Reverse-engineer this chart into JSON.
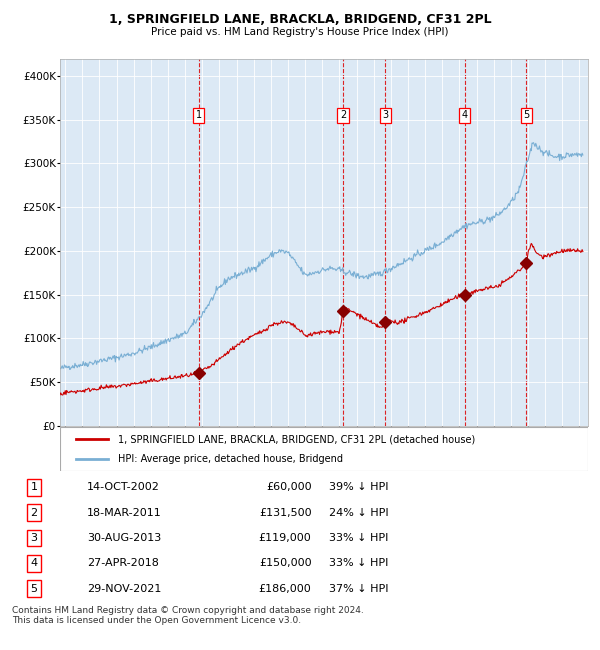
{
  "title1": "1, SPRINGFIELD LANE, BRACKLA, BRIDGEND, CF31 2PL",
  "title2": "Price paid vs. HM Land Registry's House Price Index (HPI)",
  "bg_color": "#dce9f5",
  "red_line_color": "#cc0000",
  "blue_line_color": "#7aafd4",
  "grid_color": "#ffffff",
  "sale_marker_color": "#880000",
  "vline_color": "#dd0000",
  "transactions": [
    {
      "num": 1,
      "date_decimal": 2002.79,
      "price": 60000,
      "label": "14-OCT-2002",
      "pct": "39%"
    },
    {
      "num": 2,
      "date_decimal": 2011.21,
      "price": 131500,
      "label": "18-MAR-2011",
      "pct": "24%"
    },
    {
      "num": 3,
      "date_decimal": 2013.66,
      "price": 119000,
      "label": "30-AUG-2013",
      "pct": "33%"
    },
    {
      "num": 4,
      "date_decimal": 2018.32,
      "price": 150000,
      "label": "27-APR-2018",
      "pct": "33%"
    },
    {
      "num": 5,
      "date_decimal": 2021.91,
      "price": 186000,
      "label": "29-NOV-2021",
      "pct": "37%"
    }
  ],
  "ylim": [
    0,
    420000
  ],
  "xlim_start": 1994.7,
  "xlim_end": 2025.5,
  "yticks": [
    0,
    50000,
    100000,
    150000,
    200000,
    250000,
    300000,
    350000,
    400000
  ],
  "ytick_labels": [
    "£0",
    "£50K",
    "£100K",
    "£150K",
    "£200K",
    "£250K",
    "£300K",
    "£350K",
    "£400K"
  ],
  "legend_red_label": "1, SPRINGFIELD LANE, BRACKLA, BRIDGEND, CF31 2PL (detached house)",
  "legend_blue_label": "HPI: Average price, detached house, Bridgend",
  "footer": "Contains HM Land Registry data © Crown copyright and database right 2024.\nThis data is licensed under the Open Government Licence v3.0.",
  "hpi_anchors": [
    [
      1994.7,
      65000
    ],
    [
      1995.0,
      67000
    ],
    [
      1996.0,
      70000
    ],
    [
      1997.0,
      74000
    ],
    [
      1998.0,
      78000
    ],
    [
      1999.0,
      83000
    ],
    [
      2000.0,
      90000
    ],
    [
      2001.0,
      98000
    ],
    [
      2002.0,
      105000
    ],
    [
      2003.0,
      128000
    ],
    [
      2004.0,
      158000
    ],
    [
      2004.5,
      168000
    ],
    [
      2005.0,
      172000
    ],
    [
      2006.0,
      180000
    ],
    [
      2007.0,
      195000
    ],
    [
      2007.5,
      200000
    ],
    [
      2008.0,
      198000
    ],
    [
      2008.5,
      185000
    ],
    [
      2009.0,
      172000
    ],
    [
      2009.5,
      175000
    ],
    [
      2010.0,
      178000
    ],
    [
      2010.5,
      180000
    ],
    [
      2011.0,
      178000
    ],
    [
      2011.5,
      175000
    ],
    [
      2012.0,
      172000
    ],
    [
      2012.5,
      170000
    ],
    [
      2013.0,
      172000
    ],
    [
      2013.5,
      175000
    ],
    [
      2014.0,
      180000
    ],
    [
      2014.5,
      185000
    ],
    [
      2015.0,
      190000
    ],
    [
      2015.5,
      195000
    ],
    [
      2016.0,
      200000
    ],
    [
      2016.5,
      205000
    ],
    [
      2017.0,
      210000
    ],
    [
      2017.5,
      218000
    ],
    [
      2018.0,
      225000
    ],
    [
      2018.5,
      230000
    ],
    [
      2019.0,
      232000
    ],
    [
      2019.5,
      235000
    ],
    [
      2020.0,
      238000
    ],
    [
      2020.5,
      245000
    ],
    [
      2021.0,
      255000
    ],
    [
      2021.5,
      270000
    ],
    [
      2022.0,
      305000
    ],
    [
      2022.3,
      325000
    ],
    [
      2022.6,
      318000
    ],
    [
      2023.0,
      312000
    ],
    [
      2023.5,
      308000
    ],
    [
      2024.0,
      308000
    ],
    [
      2024.5,
      310000
    ],
    [
      2025.2,
      310000
    ]
  ],
  "red_anchors": [
    [
      1994.7,
      36000
    ],
    [
      1995.0,
      38000
    ],
    [
      1996.0,
      40000
    ],
    [
      1997.0,
      43000
    ],
    [
      1998.0,
      45000
    ],
    [
      1999.0,
      48000
    ],
    [
      2000.0,
      51000
    ],
    [
      2001.0,
      54000
    ],
    [
      2002.0,
      57000
    ],
    [
      2002.79,
      60000
    ],
    [
      2003.0,
      63000
    ],
    [
      2003.5,
      68000
    ],
    [
      2004.0,
      76000
    ],
    [
      2004.5,
      84000
    ],
    [
      2005.0,
      92000
    ],
    [
      2005.5,
      98000
    ],
    [
      2006.0,
      103000
    ],
    [
      2006.5,
      108000
    ],
    [
      2007.0,
      115000
    ],
    [
      2007.5,
      118000
    ],
    [
      2008.0,
      118000
    ],
    [
      2008.5,
      112000
    ],
    [
      2009.0,
      103000
    ],
    [
      2009.5,
      105000
    ],
    [
      2010.0,
      107000
    ],
    [
      2010.5,
      108000
    ],
    [
      2011.0,
      107000
    ],
    [
      2011.21,
      131500
    ],
    [
      2011.5,
      133000
    ],
    [
      2012.0,
      128000
    ],
    [
      2012.5,
      122000
    ],
    [
      2013.0,
      116000
    ],
    [
      2013.5,
      112000
    ],
    [
      2013.66,
      119000
    ],
    [
      2014.0,
      120000
    ],
    [
      2014.5,
      118000
    ],
    [
      2015.0,
      122000
    ],
    [
      2015.5,
      126000
    ],
    [
      2016.0,
      130000
    ],
    [
      2016.5,
      134000
    ],
    [
      2017.0,
      139000
    ],
    [
      2017.5,
      144000
    ],
    [
      2018.0,
      148000
    ],
    [
      2018.32,
      150000
    ],
    [
      2019.0,
      154000
    ],
    [
      2019.5,
      157000
    ],
    [
      2020.0,
      158000
    ],
    [
      2020.5,
      163000
    ],
    [
      2021.0,
      170000
    ],
    [
      2021.5,
      178000
    ],
    [
      2021.91,
      186000
    ],
    [
      2022.0,
      200000
    ],
    [
      2022.2,
      207000
    ],
    [
      2022.5,
      198000
    ],
    [
      2022.8,
      193000
    ],
    [
      2023.0,
      195000
    ],
    [
      2023.5,
      197000
    ],
    [
      2024.0,
      200000
    ],
    [
      2024.5,
      200000
    ],
    [
      2025.2,
      200000
    ]
  ]
}
